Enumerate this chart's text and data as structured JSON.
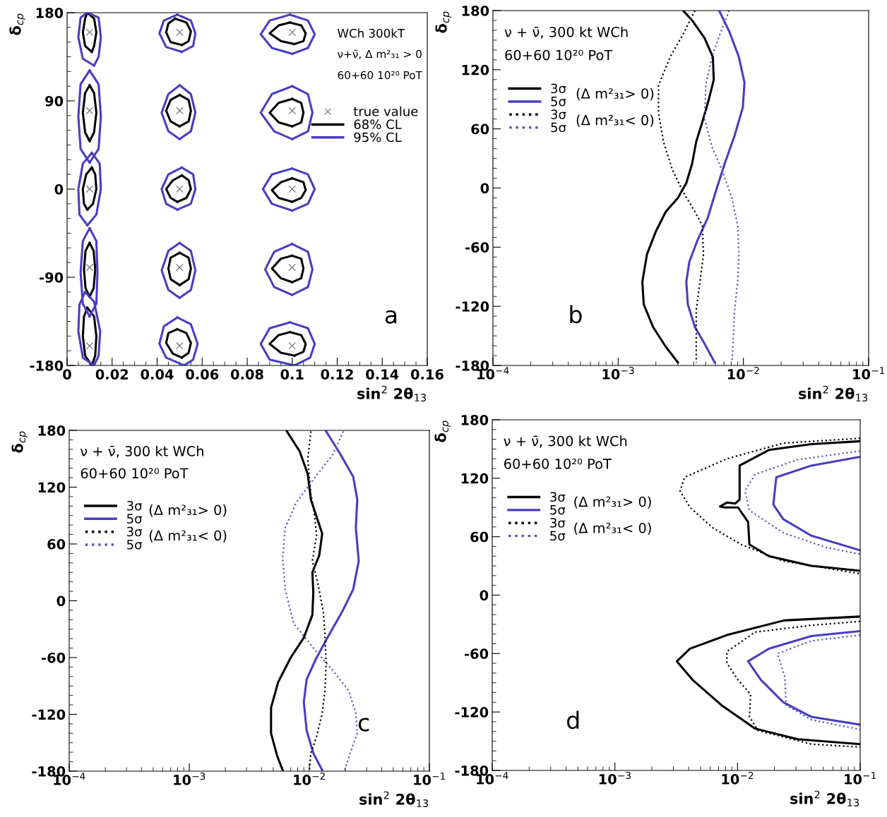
{
  "chart_data": [
    {
      "type": "line",
      "xlabel": "sin$^{2}$ 2θ$_{13}$",
      "ylabel": "δ$_{cp}$",
      "xlim": [
        0,
        0.16
      ],
      "ylim": [
        -180,
        180
      ],
      "xticks": [
        0,
        0.02,
        0.04,
        0.06,
        0.08,
        0.1,
        0.12,
        0.14,
        0.16
      ],
      "yticks": [
        -180,
        -90,
        0,
        90,
        180
      ],
      "legend": "top right",
      "annotations": [
        "WCh 300kT",
        "ν+ν̄, Δ m²₃₁ > 0",
        "60+60 10²⁰ PoT",
        "a"
      ],
      "series": [
        {
          "name": "true value",
          "type": "scatter",
          "marker": "cross",
          "color": "#808080",
          "x": [
            0.01,
            0.01,
            0.01,
            0.01,
            0.01,
            0.05,
            0.05,
            0.05,
            0.05,
            0.05,
            0.1,
            0.1,
            0.1,
            0.1,
            0.1
          ],
          "values": [
            160,
            80,
            0,
            -80,
            -160,
            160,
            80,
            0,
            -80,
            -160,
            160,
            80,
            0,
            -80,
            -160
          ]
        },
        {
          "name": "68% CL",
          "color": "#000000",
          "x": [
            0.009,
            0.012,
            0.013,
            0.012,
            0.011
          ],
          "values": [
            180,
            174,
            160,
            146,
            140
          ]
        },
        {
          "color": "#000000",
          "x": [
            0.011,
            0.008,
            0.007,
            0.008,
            0.009
          ],
          "values": [
            140,
            146,
            160,
            174,
            180
          ]
        },
        {
          "color": "#000000",
          "x": [
            0.01,
            0.012,
            0.013,
            0.012,
            0.01
          ],
          "values": [
            106,
            98,
            78,
            58,
            49
          ]
        },
        {
          "color": "#000000",
          "x": [
            0.01,
            0.008,
            0.007,
            0.008,
            0.01
          ],
          "values": [
            49,
            58,
            78,
            98,
            106
          ]
        },
        {
          "color": "#000000",
          "x": [
            0.011,
            0.0125,
            0.013,
            0.0115,
            0.009
          ],
          "values": [
            22,
            15,
            0,
            -15,
            -21
          ]
        },
        {
          "color": "#000000",
          "x": [
            0.009,
            0.0075,
            0.007,
            0.0085,
            0.011
          ],
          "values": [
            -21,
            -15,
            0,
            15,
            22
          ]
        },
        {
          "color": "#000000",
          "x": [
            0.01,
            0.0118,
            0.0125,
            0.0118,
            0.01
          ],
          "values": [
            -55,
            -63,
            -82,
            -101,
            -110
          ]
        },
        {
          "color": "#000000",
          "x": [
            0.01,
            0.0082,
            0.0075,
            0.0082,
            0.01
          ],
          "values": [
            -110,
            -101,
            -82,
            -63,
            -55
          ]
        },
        {
          "color": "#000000",
          "x": [
            0.009,
            0.012,
            0.013,
            0.0125,
            0.011
          ],
          "values": [
            -121,
            -130,
            -150,
            -170,
            -180
          ]
        },
        {
          "color": "#000000",
          "x": [
            0.011,
            0.008,
            0.007,
            0.0075,
            0.009
          ],
          "values": [
            -180,
            -170,
            -150,
            -130,
            -121
          ]
        },
        {
          "color": "#000000",
          "x": [
            0.048,
            0.053,
            0.055,
            0.054,
            0.051
          ],
          "values": [
            174,
            170,
            161,
            151,
            147
          ]
        },
        {
          "color": "#000000",
          "x": [
            0.051,
            0.046,
            0.044,
            0.045,
            0.048
          ],
          "values": [
            147,
            150,
            160,
            169,
            174
          ]
        },
        {
          "color": "#000000",
          "x": [
            0.05,
            0.054,
            0.055,
            0.054,
            0.05
          ],
          "values": [
            96,
            91,
            80,
            69,
            64
          ]
        },
        {
          "color": "#000000",
          "x": [
            0.05,
            0.046,
            0.044,
            0.046,
            0.05
          ],
          "values": [
            64,
            69,
            80,
            91,
            96
          ]
        },
        {
          "color": "#000000",
          "x": [
            0.051,
            0.054,
            0.055,
            0.053,
            0.049
          ],
          "values": [
            14,
            9,
            0,
            -9,
            -13
          ]
        },
        {
          "color": "#000000",
          "x": [
            0.049,
            0.046,
            0.044,
            0.047,
            0.051
          ],
          "values": [
            -13,
            -9,
            0,
            9,
            14
          ]
        },
        {
          "color": "#000000",
          "x": [
            0.05,
            0.054,
            0.055,
            0.054,
            0.05
          ],
          "values": [
            -65,
            -70,
            -81,
            -92,
            -98
          ]
        },
        {
          "color": "#000000",
          "x": [
            0.05,
            0.046,
            0.045,
            0.046,
            0.05
          ],
          "values": [
            -98,
            -92,
            -81,
            -70,
            -65
          ]
        },
        {
          "color": "#000000",
          "x": [
            0.049,
            0.053,
            0.055,
            0.054,
            0.051
          ],
          "values": [
            -143,
            -147,
            -157,
            -167,
            -172
          ]
        },
        {
          "color": "#000000",
          "x": [
            0.051,
            0.047,
            0.044,
            0.045,
            0.049
          ],
          "values": [
            -172,
            -168,
            -157,
            -147,
            -143
          ]
        },
        {
          "color": "#000000",
          "x": [
            0.099,
            0.104,
            0.106,
            0.105,
            0.101
          ],
          "values": [
            170,
            167,
            159,
            151,
            148
          ]
        },
        {
          "color": "#000000",
          "x": [
            0.101,
            0.095,
            0.09,
            0.094,
            0.099
          ],
          "values": [
            148,
            151,
            159,
            167,
            170
          ]
        },
        {
          "color": "#000000",
          "x": [
            0.1,
            0.104,
            0.105,
            0.104,
            0.1
          ],
          "values": [
            92,
            88,
            78,
            68,
            64
          ]
        },
        {
          "color": "#000000",
          "x": [
            0.1,
            0.094,
            0.09,
            0.094,
            0.1
          ],
          "values": [
            64,
            68,
            78,
            88,
            92
          ]
        },
        {
          "color": "#000000",
          "x": [
            0.1,
            0.105,
            0.106,
            0.104,
            0.1
          ],
          "values": [
            11,
            7,
            -1,
            -9,
            -13
          ]
        },
        {
          "color": "#000000",
          "x": [
            0.1,
            0.094,
            0.091,
            0.095,
            0.1
          ],
          "values": [
            -13,
            -9,
            -1,
            7,
            11
          ]
        },
        {
          "color": "#000000",
          "x": [
            0.1,
            0.104,
            0.105,
            0.104,
            0.1
          ],
          "values": [
            -68,
            -71,
            -81,
            -91,
            -95
          ]
        },
        {
          "color": "#000000",
          "x": [
            0.1,
            0.095,
            0.091,
            0.095,
            0.1
          ],
          "values": [
            -95,
            -91,
            -81,
            -71,
            -68
          ]
        },
        {
          "color": "#000000",
          "x": [
            0.099,
            0.104,
            0.106,
            0.105,
            0.101
          ],
          "values": [
            -146,
            -149,
            -158,
            -166,
            -170
          ]
        },
        {
          "color": "#000000",
          "x": [
            0.101,
            0.095,
            0.09,
            0.094,
            0.099
          ],
          "values": [
            -170,
            -167,
            -158,
            -149,
            -146
          ]
        },
        {
          "name": "95% CL",
          "color": "#4a3cc0",
          "x": [
            0.009,
            0.014,
            0.015,
            0.014,
            0.012
          ],
          "values": [
            180,
            175,
            155,
            135,
            126
          ]
        },
        {
          "color": "#4a3cc0",
          "x": [
            0.012,
            0.007,
            0.005,
            0.006,
            0.009
          ],
          "values": [
            126,
            133,
            155,
            175,
            180
          ]
        },
        {
          "color": "#4a3cc0",
          "x": [
            0.01,
            0.014,
            0.015,
            0.014,
            0.01
          ],
          "values": [
            121,
            107,
            74,
            41,
            27
          ]
        },
        {
          "color": "#4a3cc0",
          "x": [
            0.01,
            0.006,
            0.005,
            0.006,
            0.01
          ],
          "values": [
            27,
            41,
            74,
            107,
            121
          ]
        },
        {
          "color": "#4a3cc0",
          "x": [
            0.011,
            0.0145,
            0.015,
            0.013,
            0.009
          ],
          "values": [
            37,
            26,
            0,
            -26,
            -37
          ]
        },
        {
          "color": "#4a3cc0",
          "x": [
            0.009,
            0.0055,
            0.005,
            0.007,
            0.011
          ],
          "values": [
            -37,
            -26,
            0,
            26,
            37
          ]
        },
        {
          "color": "#4a3cc0",
          "x": [
            0.01,
            0.013,
            0.0135,
            0.013,
            0.01
          ],
          "values": [
            -40,
            -53,
            -85,
            -117,
            -130
          ]
        },
        {
          "color": "#4a3cc0",
          "x": [
            0.01,
            0.007,
            0.006,
            0.007,
            0.01
          ],
          "values": [
            -130,
            -117,
            -85,
            -53,
            -40
          ]
        },
        {
          "color": "#4a3cc0",
          "x": [
            0.008,
            0.012,
            0.0147,
            0.014,
            0.012
          ],
          "values": [
            -105,
            -115,
            -145,
            -170,
            -180
          ]
        },
        {
          "color": "#4a3cc0",
          "x": [
            0.012,
            0.007,
            0.005,
            0.0055,
            0.008
          ],
          "values": [
            -180,
            -172,
            -145,
            -118,
            -105
          ]
        },
        {
          "color": "#4a3cc0",
          "x": [
            0.049,
            0.055,
            0.057,
            0.056,
            0.051
          ],
          "values": [
            178,
            172,
            159,
            146,
            140
          ]
        },
        {
          "color": "#4a3cc0",
          "x": [
            0.051,
            0.044,
            0.041,
            0.043,
            0.049
          ],
          "values": [
            140,
            145,
            159,
            172,
            178
          ]
        },
        {
          "color": "#4a3cc0",
          "x": [
            0.05,
            0.055,
            0.057,
            0.055,
            0.05
          ],
          "values": [
            106,
            97,
            78,
            59,
            51
          ]
        },
        {
          "color": "#4a3cc0",
          "x": [
            0.05,
            0.045,
            0.042,
            0.045,
            0.05
          ],
          "values": [
            51,
            59,
            78,
            97,
            106
          ]
        },
        {
          "color": "#4a3cc0",
          "x": [
            0.051,
            0.056,
            0.057,
            0.055,
            0.049
          ],
          "values": [
            22,
            15,
            0,
            -15,
            -21
          ]
        },
        {
          "color": "#4a3cc0",
          "x": [
            0.049,
            0.044,
            0.042,
            0.045,
            0.051
          ],
          "values": [
            -21,
            -15,
            0,
            15,
            22
          ]
        },
        {
          "color": "#4a3cc0",
          "x": [
            0.05,
            0.055,
            0.057,
            0.055,
            0.05
          ],
          "values": [
            -55,
            -63,
            -83,
            -103,
            -111
          ]
        },
        {
          "color": "#4a3cc0",
          "x": [
            0.05,
            0.045,
            0.042,
            0.045,
            0.05
          ],
          "values": [
            -111,
            -103,
            -83,
            -63,
            -55
          ]
        },
        {
          "color": "#4a3cc0",
          "x": [
            0.049,
            0.055,
            0.058,
            0.056,
            0.052
          ],
          "values": [
            -131,
            -138,
            -158,
            -174,
            -180
          ]
        },
        {
          "color": "#4a3cc0",
          "x": [
            0.052,
            0.044,
            0.041,
            0.043,
            0.049
          ],
          "values": [
            -180,
            -172,
            -158,
            -140,
            -131
          ]
        },
        {
          "color": "#4a3cc0",
          "x": [
            0.099,
            0.107,
            0.11,
            0.107,
            0.1
          ],
          "values": [
            178,
            172,
            158,
            144,
            138
          ]
        },
        {
          "color": "#4a3cc0",
          "x": [
            0.1,
            0.091,
            0.086,
            0.09,
            0.099
          ],
          "values": [
            138,
            144,
            158,
            172,
            178
          ]
        },
        {
          "color": "#4a3cc0",
          "x": [
            0.1,
            0.107,
            0.109,
            0.107,
            0.1
          ],
          "values": [
            105,
            97,
            78,
            59,
            51
          ]
        },
        {
          "color": "#4a3cc0",
          "x": [
            0.1,
            0.092,
            0.086,
            0.091,
            0.1
          ],
          "values": [
            51,
            59,
            78,
            97,
            105
          ]
        },
        {
          "color": "#4a3cc0",
          "x": [
            0.1,
            0.107,
            0.11,
            0.107,
            0.1
          ],
          "values": [
            21,
            15,
            0,
            -15,
            -22
          ]
        },
        {
          "color": "#4a3cc0",
          "x": [
            0.1,
            0.091,
            0.087,
            0.091,
            0.1
          ],
          "values": [
            -22,
            -15,
            0,
            15,
            21
          ]
        },
        {
          "color": "#4a3cc0",
          "x": [
            0.1,
            0.107,
            0.109,
            0.107,
            0.1
          ],
          "values": [
            -56,
            -64,
            -82,
            -100,
            -108
          ]
        },
        {
          "color": "#4a3cc0",
          "x": [
            0.1,
            0.092,
            0.088,
            0.092,
            0.1
          ],
          "values": [
            -108,
            -100,
            -82,
            -64,
            -56
          ]
        },
        {
          "color": "#4a3cc0",
          "x": [
            0.099,
            0.107,
            0.11,
            0.108,
            0.101
          ],
          "values": [
            -136,
            -142,
            -158,
            -172,
            -180
          ]
        },
        {
          "color": "#4a3cc0",
          "x": [
            0.101,
            0.09,
            0.086,
            0.09,
            0.099
          ],
          "values": [
            -180,
            -174,
            -158,
            -142,
            -136
          ]
        }
      ]
    },
    {
      "type": "line",
      "log": "x",
      "xlabel": "sin$^{2}$ 2θ$_{13}$",
      "ylabel": "δ$_{cp}$",
      "xlim": [
        0.0001,
        0.1
      ],
      "ylim": [
        -180,
        180
      ],
      "xticks": [
        {
          "value": 0.0001,
          "label": "10$^{−4}$"
        },
        {
          "value": 0.001,
          "label": "10$^{−3}$"
        },
        {
          "value": 0.01,
          "label": "10$^{−2}$"
        },
        {
          "value": 0.1,
          "label": "10$^{−1}$"
        }
      ],
      "yticks": [
        -180,
        -120,
        -60,
        0,
        60,
        120,
        180
      ],
      "legend": "top left",
      "annotations": [
        "ν + ν̄, 300 kt WCh",
        "60+60 10²⁰ PoT",
        "(Δ m²₃₁> 0)",
        "(Δ m²₃₁< 0)",
        "b"
      ],
      "series": [
        {
          "name": "3σ",
          "color": "#000000",
          "line_style": "solid",
          "x": [
            0.0033,
            0.0039,
            0.0049,
            0.0057,
            0.0058,
            0.0053,
            0.0047,
            0.0042,
            0.0039,
            0.0035,
            0.003,
            0.0024,
            0.002,
            0.0017,
            0.00156,
            0.0016,
            0.0019,
            0.0024,
            0.003
          ],
          "values": [
            180,
            170,
            152,
            133,
            110,
            90,
            67,
            47,
            25,
            5,
            -10,
            -24,
            -44,
            -67,
            -95,
            -118,
            -141,
            -161,
            -177
          ]
        },
        {
          "name": "5σ",
          "color": "#4a3cc0",
          "line_style": "solid",
          "x": [
            0.0064,
            0.0077,
            0.0092,
            0.0102,
            0.0099,
            0.0085,
            0.0071,
            0.006,
            0.0052,
            0.0043,
            0.0037,
            0.0035,
            0.0036,
            0.0041,
            0.0049,
            0.0059
          ],
          "values": [
            180,
            159,
            133,
            107,
            82,
            53,
            25,
            -4,
            -30,
            -53,
            -75,
            -95,
            -118,
            -141,
            -158,
            -177
          ]
        },
        {
          "name": "3σ",
          "color": "#000000",
          "line_style": "dotted",
          "x": [
            0.0041,
            0.0033,
            0.0026,
            0.0021,
            0.0021,
            0.0023,
            0.0027,
            0.0033,
            0.0041,
            0.0047,
            0.0048,
            0.0045,
            0.0042,
            0.0042,
            0.0042
          ],
          "values": [
            180,
            156,
            133,
            104,
            76,
            47,
            19,
            -4,
            -24,
            -38,
            -67,
            -95,
            -124,
            -152,
            -177
          ]
        },
        {
          "name": "5σ",
          "color": "#5a5ab4",
          "line_style": "dotted",
          "x": [
            0.0077,
            0.0065,
            0.0056,
            0.005,
            0.0049,
            0.0056,
            0.0067,
            0.0081,
            0.009,
            0.0092,
            0.009,
            0.0085,
            0.0083,
            0.0081
          ],
          "values": [
            180,
            156,
            133,
            104,
            70,
            42,
            19,
            -10,
            -38,
            -67,
            -95,
            -124,
            -152,
            -177
          ]
        }
      ]
    },
    {
      "type": "line",
      "log": "x",
      "xlabel": "sin$^{2}$ 2θ$_{13}$",
      "ylabel": "δ$_{cp}$",
      "xlim": [
        0.0001,
        0.1
      ],
      "ylim": [
        -180,
        180
      ],
      "xticks": [
        {
          "value": 0.0001,
          "label": "10$^{−4}$"
        },
        {
          "value": 0.001,
          "label": "10$^{−3}$"
        },
        {
          "value": 0.01,
          "label": "10$^{−2}$"
        },
        {
          "value": 0.1,
          "label": "10$^{−1}$"
        }
      ],
      "yticks": [
        -180,
        -120,
        -60,
        0,
        60,
        120,
        180
      ],
      "legend": "top left",
      "annotations": [
        "ν + ν̄, 300 kt WCh",
        "60+60 10²⁰ PoT",
        "(Δ m²₃₁> 0)",
        "(Δ m²₃₁< 0)",
        "c"
      ],
      "series": [
        {
          "name": "3σ",
          "color": "#000000",
          "line_style": "solid",
          "x": [
            0.0065,
            0.0083,
            0.0097,
            0.0103,
            0.0128,
            0.0121,
            0.0106,
            0.0108,
            0.0106,
            0.009,
            0.007,
            0.0055,
            0.0048,
            0.0048,
            0.0054,
            0.006
          ],
          "values": [
            179,
            158,
            134,
            107,
            71,
            48,
            30,
            9,
            -15,
            -39,
            -60,
            -86,
            -113,
            -140,
            -164,
            -179
          ]
        },
        {
          "name": "5σ",
          "color": "#4a3cc0",
          "line_style": "solid",
          "x": [
            0.0138,
            0.0181,
            0.0232,
            0.0251,
            0.0244,
            0.0258,
            0.0232,
            0.0187,
            0.0146,
            0.0115,
            0.0095,
            0.009,
            0.0095,
            0.0108,
            0.0128
          ],
          "values": [
            179,
            155,
            131,
            107,
            77,
            42,
            12,
            -12,
            -36,
            -60,
            -83,
            -107,
            -137,
            -161,
            -179
          ]
        },
        {
          "name": "3σ",
          "color": "#000000",
          "line_style": "dotted",
          "x": [
            0.0103,
            0.0097,
            0.0103,
            0.0111,
            0.0115,
            0.0106,
            0.0118,
            0.0131,
            0.0135,
            0.0138,
            0.0135,
            0.0128,
            0.0115,
            0.0103,
            0.01
          ],
          "values": [
            179,
            149,
            113,
            89,
            69,
            42,
            18,
            -12,
            -36,
            -66,
            -95,
            -119,
            -143,
            -161,
            -179
          ]
        },
        {
          "name": "5σ",
          "color": "#5a5ab4",
          "line_style": "dotted",
          "x": [
            0.0192,
            0.0158,
            0.0108,
            0.0078,
            0.0063,
            0.006,
            0.0063,
            0.0074,
            0.0115,
            0.0158,
            0.0213,
            0.0244,
            0.0251,
            0.0219,
            0.0197
          ],
          "values": [
            179,
            155,
            128,
            104,
            77,
            45,
            12,
            -24,
            -54,
            -74,
            -95,
            -119,
            -140,
            -161,
            -179
          ]
        }
      ]
    },
    {
      "type": "line",
      "log": "x",
      "xlabel": "sin$^{2}$ 2θ$_{13}$",
      "ylabel": "δ$_{cp}$",
      "xlim": [
        0.0001,
        0.1
      ],
      "ylim": [
        -180,
        180
      ],
      "xticks": [
        {
          "value": 0.0001,
          "label": "10$^{−4}$"
        },
        {
          "value": 0.001,
          "label": "10$^{−3}$"
        },
        {
          "value": 0.01,
          "label": "10$^{−2}$"
        },
        {
          "value": 0.1,
          "label": "10$^{−1}$"
        }
      ],
      "yticks": [
        -180,
        -120,
        -60,
        0,
        60,
        120,
        180
      ],
      "legend": "top left",
      "annotations": [
        "ν + ν̄, 300 kt WCh",
        "60+60 10²⁰ PoT",
        "(Δ m²₃₁> 0)",
        "(Δ m²₃₁< 0)",
        "d"
      ],
      "series": [
        {
          "name": "3σ",
          "color": "#000000",
          "line_style": "solid",
          "x": [
            0.1,
            0.04,
            0.018,
            0.0104,
            0.0104,
            0.0096,
            0.0082,
            0.0072,
            0.0078,
            0.0101,
            0.0122,
            0.0125,
            0.018,
            0.04,
            0.1
          ],
          "values": [
            158,
            155,
            149,
            133,
            98,
            94,
            95,
            91,
            90,
            90,
            75,
            52,
            40,
            30,
            25
          ]
        },
        {
          "name": "5σ",
          "color": "#4a3cc0",
          "line_style": "solid",
          "x": [
            0.1,
            0.04,
            0.0207,
            0.0196,
            0.0236,
            0.04,
            0.1
          ],
          "values": [
            142,
            133,
            121,
            93,
            78,
            61,
            46
          ]
        },
        {
          "name": "3σ",
          "color": "#000000",
          "line_style": "dotted",
          "x": [
            0.1,
            0.0236,
            0.0082,
            0.0037,
            0.0034,
            0.0041,
            0.0063,
            0.0107,
            0.0236,
            0.1
          ],
          "values": [
            161,
            156,
            140,
            121,
            107,
            90,
            69,
            52,
            35,
            22
          ]
        },
        {
          "name": "5σ",
          "color": "#5a5ab4",
          "line_style": "dotted",
          "x": [
            0.1,
            0.0308,
            0.0139,
            0.0115,
            0.0125,
            0.0236,
            0.0524,
            0.1
          ],
          "values": [
            148,
            139,
            124,
            107,
            87,
            64,
            49,
            42
          ]
        },
        {
          "color": "#000000",
          "line_style": "solid",
          "x": [
            0.1,
            0.024,
            0.0082,
            0.0041,
            0.0032,
            0.0043,
            0.0074,
            0.0139,
            0.031,
            0.1
          ],
          "values": [
            -22,
            -26,
            -41,
            -55,
            -68,
            -87,
            -113,
            -137,
            -148,
            -153
          ]
        },
        {
          "color": "#4a3cc0",
          "line_style": "solid",
          "x": [
            0.1,
            0.04,
            0.018,
            0.0122,
            0.0155,
            0.0236,
            0.04,
            0.1
          ],
          "values": [
            -37,
            -42,
            -55,
            -68,
            -87,
            -110,
            -125,
            -133
          ]
        },
        {
          "color": "#000000",
          "line_style": "dotted",
          "x": [
            0.1,
            0.04,
            0.0139,
            0.0082,
            0.0082,
            0.0101,
            0.0128,
            0.0125,
            0.0147,
            0.04,
            0.1
          ],
          "values": [
            -27,
            -31,
            -38,
            -58,
            -70,
            -87,
            -102,
            -125,
            -139,
            -153,
            -156
          ]
        },
        {
          "color": "#5a5ab4",
          "line_style": "dotted",
          "x": [
            0.1,
            0.04,
            0.0212,
            0.0243,
            0.0249,
            0.04,
            0.1
          ],
          "values": [
            -41,
            -47,
            -60,
            -84,
            -113,
            -128,
            -138
          ]
        }
      ]
    }
  ]
}
